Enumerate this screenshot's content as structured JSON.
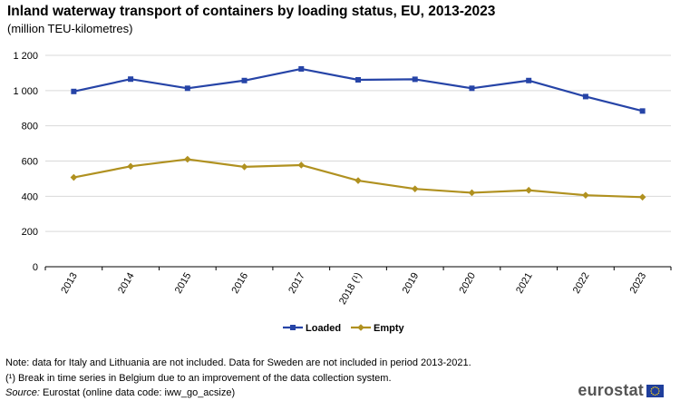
{
  "header": {
    "title": "Inland waterway transport of containers by loading status, EU, 2013-2023",
    "subtitle": "(million TEU-kilometres)"
  },
  "chart_data": {
    "type": "line",
    "title": "Inland waterway transport of containers by loading status, EU, 2013-2023",
    "subtitle": "(million TEU-kilometres)",
    "xlabel": "",
    "ylabel": "",
    "categories": [
      "2013",
      "2014",
      "2015",
      "2016",
      "2017",
      "2018 (¹)",
      "2019",
      "2020",
      "2021",
      "2022",
      "2023"
    ],
    "ylim": [
      0,
      1200
    ],
    "yticks": [
      0,
      200,
      400,
      600,
      800,
      1000,
      1200
    ],
    "ytick_labels": [
      "0",
      "200",
      "400",
      "600",
      "800",
      "1 000",
      "1 200"
    ],
    "grid": true,
    "legend_position": "bottom-center",
    "series": [
      {
        "name": "Loaded",
        "color": "#2644a7",
        "marker": "square",
        "values": [
          995,
          1065,
          1013,
          1057,
          1123,
          1061,
          1064,
          1013,
          1057,
          966,
          884
        ]
      },
      {
        "name": "Empty",
        "color": "#b09120",
        "marker": "diamond",
        "values": [
          507,
          570,
          610,
          567,
          577,
          489,
          442,
          420,
          434,
          406,
          395
        ]
      }
    ]
  },
  "footer": {
    "note_1": "Note: data for Italy and Lithuania are not included. Data for Sweden are not included in period 2013-2021.",
    "note_2": "(¹) Break in time series in Belgium due to an improvement of the data collection system.",
    "source_label": "Source:",
    "source_text": " Eurostat (online data code: iww_go_acsize)",
    "logo_text": "eurostat"
  },
  "colors": {
    "grid": "#d9d9d9",
    "axis": "#000000"
  }
}
